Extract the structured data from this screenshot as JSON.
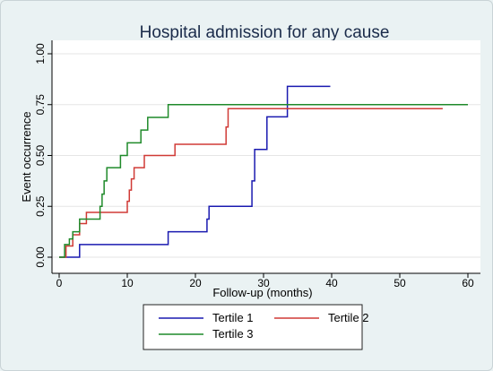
{
  "chart_data": {
    "type": "line",
    "step": true,
    "title": "Hospital admission for any cause",
    "xlabel": "Follow-up (months)",
    "ylabel": "Event occurrence",
    "xlim": [
      0,
      60
    ],
    "ylim": [
      0,
      1
    ],
    "x_ticks": [
      "0",
      "10",
      "20",
      "30",
      "40",
      "50",
      "60"
    ],
    "y_ticks": [
      "0.00",
      "0.25",
      "0.50",
      "0.75",
      "1.00"
    ],
    "grid": true,
    "legend_placement": "bottom",
    "series": [
      {
        "name": "Tertile 1",
        "color": "#1a1ab0",
        "x": [
          0,
          3,
          16,
          21.7,
          22,
          28.3,
          28.7,
          30.5,
          33.5,
          39.8
        ],
        "y": [
          0,
          0.0625,
          0.125,
          0.1875,
          0.25,
          0.375,
          0.53,
          0.69,
          0.84,
          0.84
        ]
      },
      {
        "name": "Tertile 2",
        "color": "#d03a36",
        "x": [
          0,
          1,
          2,
          3,
          4,
          6,
          10,
          10.3,
          10.6,
          11,
          12.5,
          17,
          24.5,
          24.8,
          56.3
        ],
        "y": [
          0,
          0.055,
          0.11,
          0.165,
          0.22,
          0.22,
          0.275,
          0.33,
          0.385,
          0.44,
          0.5,
          0.555,
          0.64,
          0.73,
          0.73
        ]
      },
      {
        "name": "Tertile 3",
        "color": "#1f8a2a",
        "x": [
          0,
          0.8,
          1.5,
          2,
          3,
          6,
          6.3,
          6.6,
          7,
          9,
          10,
          12,
          13,
          16,
          60
        ],
        "y": [
          0,
          0.0625,
          0.09,
          0.125,
          0.1875,
          0.25,
          0.31,
          0.375,
          0.44,
          0.5,
          0.5625,
          0.625,
          0.6875,
          0.75,
          0.75
        ]
      }
    ]
  }
}
